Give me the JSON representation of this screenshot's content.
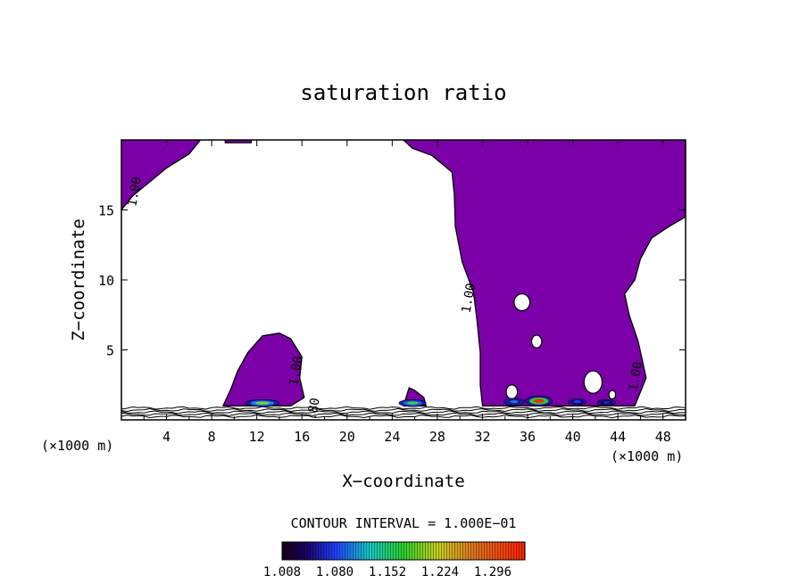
{
  "chart_data": {
    "type": "heatmap",
    "title": "saturation ratio",
    "xlabel": "X−coordinate",
    "ylabel": "Z−coordinate",
    "x_unit": "(×1000 m)",
    "x_unit_right": "(×1000 m)",
    "xlim": [
      0,
      50
    ],
    "ylim": [
      0,
      20
    ],
    "x_ticks": [
      4,
      8,
      12,
      16,
      20,
      24,
      28,
      32,
      36,
      40,
      44,
      48
    ],
    "y_ticks": [
      5,
      10,
      15
    ],
    "contour_labels": [
      {
        "text": "1.00",
        "x": 1.2,
        "y": 16.3
      },
      {
        "text": "1.00",
        "x": 30.8,
        "y": 8.7
      },
      {
        "text": "1.00",
        "x": 15.5,
        "y": 3.5
      },
      {
        "text": "1.00",
        "x": 45.6,
        "y": 3.1
      },
      {
        "text": "0.80",
        "x": 17.0,
        "y": 0.5
      }
    ],
    "contour_interval_text": "CONTOUR INTERVAL = 1.000E−01",
    "colorbar": {
      "min": 1.008,
      "max": 1.34,
      "tick_labels": [
        "1.008",
        "1.080",
        "1.152",
        "1.224",
        "1.296"
      ],
      "tick_values": [
        1.008,
        1.08,
        1.152,
        1.224,
        1.296
      ]
    },
    "supersaturated_color": "#7b00a8",
    "regions": [
      {
        "name": "upper-left",
        "outline": [
          [
            0,
            20
          ],
          [
            7,
            20
          ],
          [
            6,
            19
          ],
          [
            4,
            18
          ],
          [
            2.5,
            17
          ],
          [
            1,
            16
          ],
          [
            0,
            15
          ]
        ]
      },
      {
        "name": "top-cap",
        "outline": [
          [
            9.2,
            20
          ],
          [
            11.5,
            20
          ],
          [
            11.5,
            19.8
          ],
          [
            9.2,
            19.8
          ]
        ]
      },
      {
        "name": "left-cell",
        "outline": [
          [
            9,
            1
          ],
          [
            9.7,
            2.2
          ],
          [
            10.3,
            3.5
          ],
          [
            11.2,
            4.8
          ],
          [
            12.5,
            6
          ],
          [
            14,
            6.2
          ],
          [
            15,
            5.8
          ],
          [
            16,
            4.5
          ],
          [
            15.8,
            3
          ],
          [
            16.2,
            1.6
          ],
          [
            15,
            1
          ],
          [
            12,
            1
          ]
        ]
      },
      {
        "name": "mid-bump",
        "outline": [
          [
            25,
            1
          ],
          [
            25.5,
            2.3
          ],
          [
            26,
            2.1
          ],
          [
            26.8,
            1.6
          ],
          [
            27,
            1
          ]
        ]
      },
      {
        "name": "main-plume",
        "outline": [
          [
            25,
            20
          ],
          [
            25.8,
            19.4
          ],
          [
            27.5,
            18.9
          ],
          [
            29.3,
            17.7
          ],
          [
            29.5,
            16.1
          ],
          [
            29.6,
            13.8
          ],
          [
            30.2,
            11.3
          ],
          [
            31.2,
            9.1
          ],
          [
            31.5,
            7.2
          ],
          [
            31.8,
            4.8
          ],
          [
            31.8,
            2.5
          ],
          [
            32,
            1
          ],
          [
            42,
            1
          ],
          [
            45.5,
            1
          ],
          [
            46.5,
            3
          ],
          [
            45.8,
            5.6
          ],
          [
            45,
            7.5
          ],
          [
            44.6,
            9
          ],
          [
            45.5,
            10
          ],
          [
            46,
            11.5
          ],
          [
            47,
            13
          ],
          [
            48.5,
            13.8
          ],
          [
            50,
            14.5
          ],
          [
            50,
            20
          ]
        ]
      }
    ],
    "holes": [
      {
        "x": 35.5,
        "y": 8.4,
        "rx": 0.7,
        "ry": 0.6
      },
      {
        "x": 36.8,
        "y": 5.6,
        "rx": 0.45,
        "ry": 0.45
      },
      {
        "x": 34.6,
        "y": 2.0,
        "rx": 0.5,
        "ry": 0.5
      },
      {
        "x": 41.8,
        "y": 2.7,
        "rx": 0.8,
        "ry": 0.8
      },
      {
        "x": 43.5,
        "y": 1.8,
        "rx": 0.3,
        "ry": 0.3
      }
    ],
    "hotspots": [
      {
        "x": 12.5,
        "y": 1.2,
        "rx": 1.5,
        "ry": 0.25,
        "value": 1.2
      },
      {
        "x": 25.8,
        "y": 1.2,
        "rx": 1.2,
        "ry": 0.25,
        "value": 1.18
      },
      {
        "x": 37.0,
        "y": 1.35,
        "rx": 1.2,
        "ry": 0.35,
        "value": 1.33
      },
      {
        "x": 34.8,
        "y": 1.3,
        "rx": 0.9,
        "ry": 0.25,
        "value": 1.1
      },
      {
        "x": 40.4,
        "y": 1.3,
        "rx": 0.8,
        "ry": 0.2,
        "value": 1.08
      },
      {
        "x": 43.0,
        "y": 1.25,
        "rx": 0.8,
        "ry": 0.2,
        "value": 1.06
      }
    ],
    "surface_contours_y": [
      0.25,
      0.4,
      0.55,
      0.7,
      0.85
    ],
    "grid": false
  }
}
